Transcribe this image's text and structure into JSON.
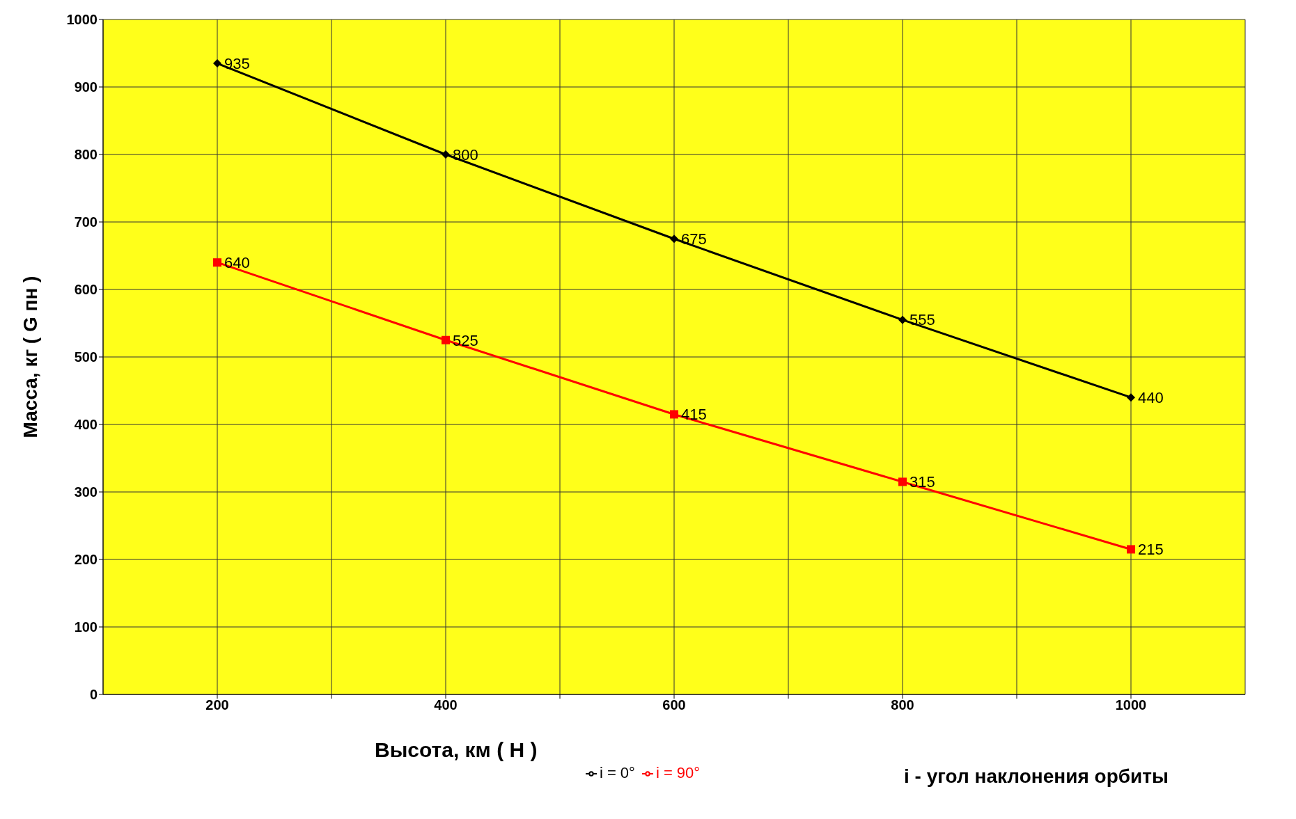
{
  "chart_data": {
    "type": "line",
    "xlabel": "Высота, км ( H )",
    "ylabel": "Масса, кг ( G пн )",
    "x": [
      200,
      400,
      600,
      800,
      1000
    ],
    "series": [
      {
        "name": "i = 0°",
        "color": "#000000",
        "marker": "diamond",
        "values": [
          935,
          800,
          675,
          555,
          440
        ]
      },
      {
        "name": "i = 90°",
        "color": "#ff0000",
        "marker": "square",
        "values": [
          640,
          525,
          415,
          315,
          215
        ]
      }
    ],
    "xlim": [
      100,
      1100
    ],
    "xticks": [
      200,
      {
        "value": 300,
        "label": null
      },
      400,
      {
        "value": 500,
        "label": null
      },
      600,
      {
        "value": 700,
        "label": null
      },
      800,
      {
        "value": 900,
        "label": null
      },
      1000
    ],
    "ylim": [
      0,
      1000
    ],
    "yticks": [
      0,
      100,
      200,
      300,
      400,
      500,
      600,
      700,
      800,
      900,
      1000
    ],
    "grid": true,
    "legend": "bottom",
    "data_labels": true,
    "line_style": "solid",
    "annotations": [
      "i - угол наклонения орбиты"
    ]
  }
}
